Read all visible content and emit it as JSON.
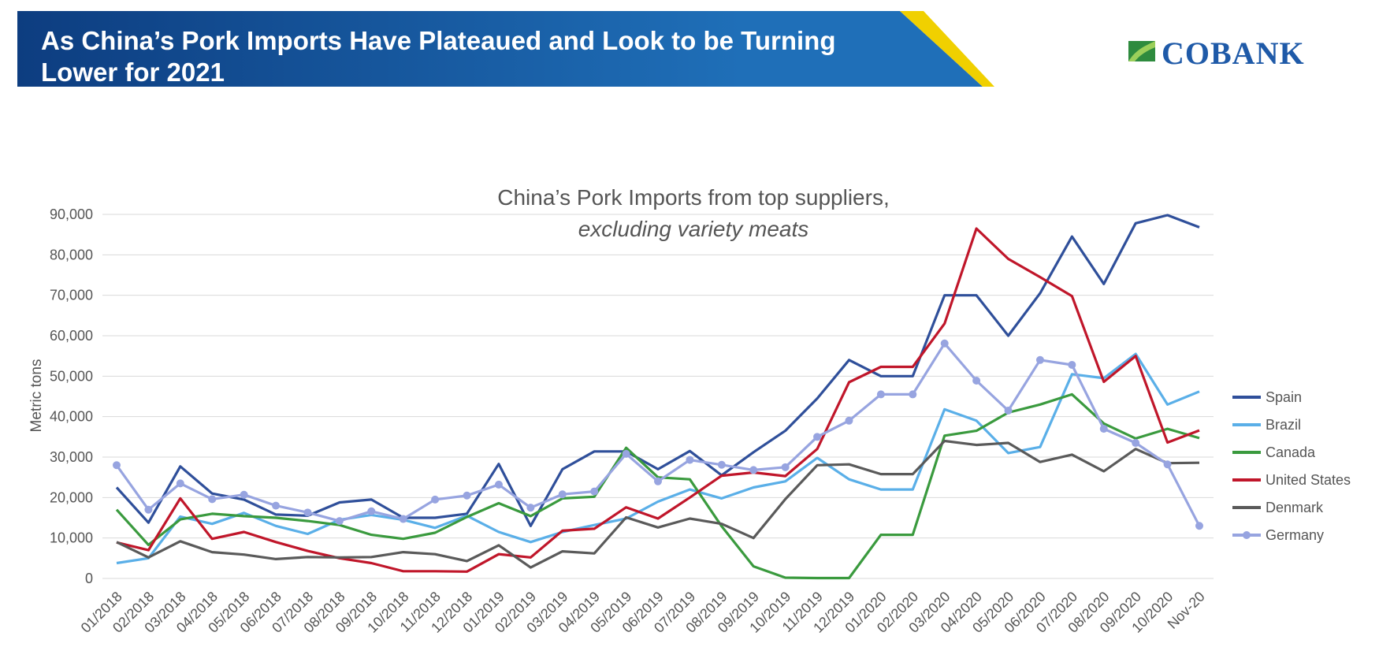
{
  "header": {
    "title_line1": "As China’s Pork Imports Have Plateaued and Look to be Turning",
    "title_line2": "Lower for 2021",
    "colors": {
      "banner_dark": "#0d3d80",
      "banner_light": "#1f6fb8",
      "accent": "#f0d000"
    }
  },
  "logo": {
    "text": "COBANK",
    "icon": "cobank-leaf-icon",
    "colors": {
      "mark": "#2e8b3e",
      "text": "#1f5aa8"
    }
  },
  "chart_data": {
    "type": "line",
    "title": "China’s Pork Imports from top suppliers,",
    "subtitle": "excluding variety meats",
    "ylabel": "Metric tons",
    "ylim": [
      0,
      90000
    ],
    "yticks": [
      0,
      10000,
      20000,
      30000,
      40000,
      50000,
      60000,
      70000,
      80000,
      90000
    ],
    "ytick_labels": [
      "0",
      "10,000",
      "20,000",
      "30,000",
      "40,000",
      "50,000",
      "60,000",
      "70,000",
      "80,000",
      "90,000"
    ],
    "grid": true,
    "legend_position": "right",
    "categories": [
      "01/2018",
      "02/2018",
      "03/2018",
      "04/2018",
      "05/2018",
      "06/2018",
      "07/2018",
      "08/2018",
      "09/2018",
      "10/2018",
      "11/2018",
      "12/2018",
      "01/2019",
      "02/2019",
      "03/2019",
      "04/2019",
      "05/2019",
      "06/2019",
      "07/2019",
      "08/2019",
      "09/2019",
      "10/2019",
      "11/2019",
      "12/2019",
      "01/2020",
      "02/2020",
      "03/2020",
      "04/2020",
      "05/2020",
      "06/2020",
      "07/2020",
      "08/2020",
      "09/2020",
      "10/2020",
      "Nov-20"
    ],
    "series": [
      {
        "name": "Spain",
        "color": "#2f4f9a",
        "markers": false,
        "values": [
          22500,
          13800,
          27700,
          21000,
          19500,
          15800,
          15500,
          18800,
          19500,
          15000,
          15000,
          16000,
          28300,
          13000,
          27000,
          31400,
          31400,
          27000,
          31500,
          25500,
          31200,
          36500,
          44500,
          54000,
          50000,
          50000,
          70000,
          70000,
          60000,
          70500,
          84500,
          72800,
          87800,
          89800,
          86800
        ]
      },
      {
        "name": "Brazil",
        "color": "#5aafe8",
        "markers": false,
        "values": [
          3800,
          5000,
          15300,
          13500,
          16200,
          13000,
          11000,
          14500,
          15700,
          14500,
          12500,
          15500,
          11500,
          9000,
          11500,
          13200,
          14800,
          19000,
          22000,
          19800,
          22500,
          24000,
          29800,
          24500,
          22000,
          22000,
          41800,
          39000,
          31000,
          32500,
          50500,
          49500,
          55500,
          43000,
          46200
        ]
      },
      {
        "name": "Canada",
        "color": "#3a9a3e",
        "markers": false,
        "values": [
          17000,
          8300,
          14600,
          16000,
          15400,
          15000,
          14200,
          13200,
          10800,
          9800,
          11300,
          15200,
          18600,
          15400,
          19800,
          20200,
          32300,
          25000,
          24500,
          12900,
          3000,
          200,
          100,
          100,
          10800,
          10800,
          35300,
          36500,
          41000,
          43000,
          45500,
          38300,
          34600,
          37000,
          34700
        ]
      },
      {
        "name": "United States",
        "color": "#c0162a",
        "markers": false,
        "values": [
          8900,
          7000,
          19800,
          9800,
          11500,
          9000,
          6800,
          5000,
          3800,
          1800,
          1800,
          1700,
          6000,
          5200,
          11800,
          12300,
          17600,
          14800,
          20000,
          25400,
          26200,
          25300,
          32000,
          48500,
          52300,
          52300,
          63000,
          86500,
          79000,
          74500,
          69800,
          48600,
          55000,
          33600,
          36600
        ]
      },
      {
        "name": "Denmark",
        "color": "#5a5a5a",
        "markers": false,
        "values": [
          9000,
          5200,
          9200,
          6500,
          5900,
          4800,
          5300,
          5200,
          5300,
          6500,
          6000,
          4300,
          8200,
          2700,
          6700,
          6200,
          15100,
          12600,
          14800,
          13500,
          10000,
          19600,
          28000,
          28200,
          25800,
          25800,
          34000,
          33000,
          33500,
          28800,
          30600,
          26500,
          32000,
          28500,
          28600
        ]
      },
      {
        "name": "Germany",
        "color": "#97a4e0",
        "markers": true,
        "values": [
          28000,
          17000,
          23500,
          19600,
          20700,
          18000,
          16300,
          14200,
          16600,
          14700,
          19500,
          20500,
          23200,
          17500,
          20800,
          21500,
          30800,
          24000,
          29300,
          28100,
          26800,
          27500,
          35000,
          39000,
          45500,
          45500,
          58100,
          48900,
          41500,
          54000,
          52800,
          37000,
          33500,
          28200,
          13000
        ]
      }
    ]
  }
}
